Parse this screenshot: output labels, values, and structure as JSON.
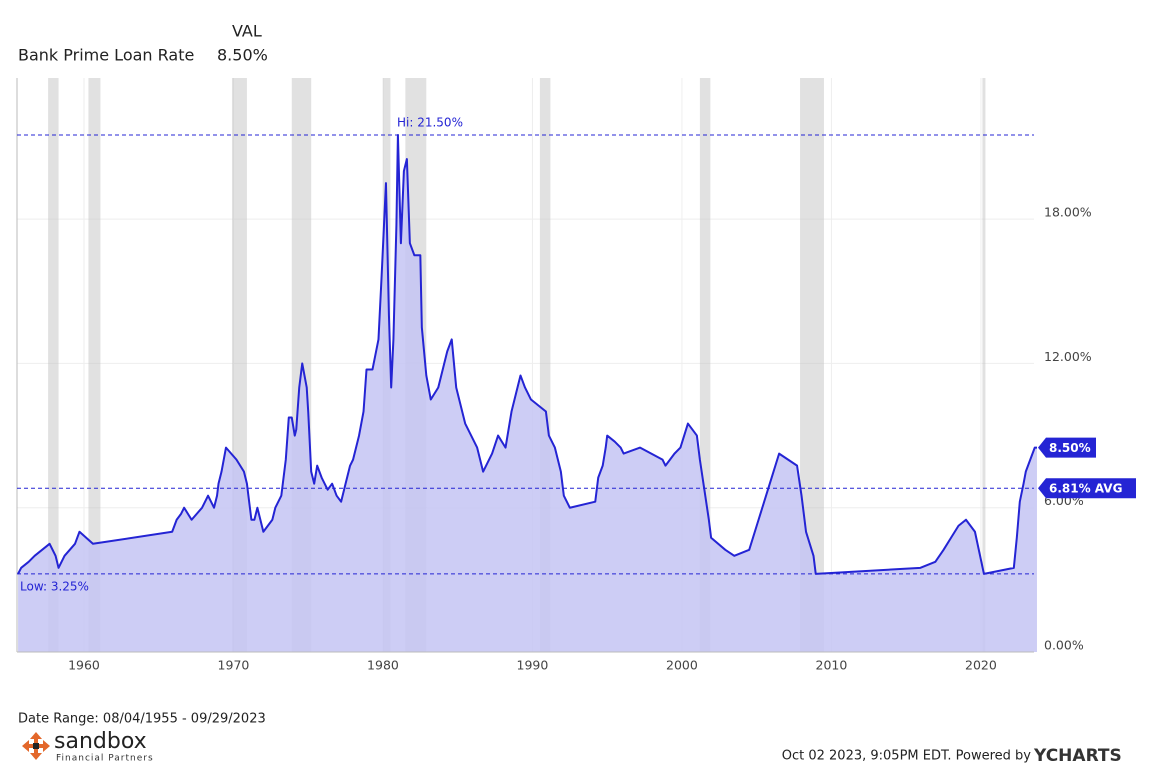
{
  "chart_data": {
    "type": "area",
    "legend_header": "VAL",
    "series": [
      {
        "name": "Bank Prime Loan Rate",
        "color": "#2424d4",
        "fill": "#c4c4f3",
        "x": [
          1955.59,
          1955.8,
          1956.3,
          1956.7,
          1957.7,
          1958.1,
          1958.3,
          1958.7,
          1959.4,
          1959.7,
          1960.6,
          1965.9,
          1966.2,
          1966.5,
          1966.7,
          1967.2,
          1967.9,
          1968.3,
          1968.7,
          1968.9,
          1969.0,
          1969.2,
          1969.5,
          1970.2,
          1970.7,
          1970.9,
          1971.0,
          1971.2,
          1971.4,
          1971.6,
          1971.8,
          1972.0,
          1972.3,
          1972.6,
          1972.8,
          1973.2,
          1973.5,
          1973.7,
          1973.9,
          1974.1,
          1974.2,
          1974.4,
          1974.6,
          1974.9,
          1975.0,
          1975.2,
          1975.4,
          1975.6,
          1975.9,
          1976.3,
          1976.6,
          1976.9,
          1977.2,
          1977.5,
          1977.8,
          1978.0,
          1978.4,
          1978.7,
          1978.9,
          1979.3,
          1979.7,
          1979.9,
          1980.2,
          1980.4,
          1980.55,
          1980.7,
          1980.9,
          1981.0,
          1981.2,
          1981.4,
          1981.6,
          1981.8,
          1982.1,
          1982.5,
          1982.6,
          1982.9,
          1983.2,
          1983.7,
          1984.3,
          1984.6,
          1984.9,
          1985.5,
          1986.3,
          1986.7,
          1987.3,
          1987.7,
          1988.2,
          1988.6,
          1989.2,
          1989.5,
          1989.9,
          1990.9,
          1991.1,
          1991.5,
          1991.9,
          1992.1,
          1992.5,
          1994.2,
          1994.4,
          1994.7,
          1994.9,
          1995.0,
          1995.5,
          1995.9,
          1996.1,
          1997.2,
          1998.7,
          1998.9,
          1999.5,
          1999.9,
          2000.4,
          2001.0,
          2001.2,
          2001.5,
          2001.8,
          2001.95,
          2002.9,
          2003.5,
          2004.5,
          2005.0,
          2005.5,
          2006.0,
          2006.5,
          2007.7,
          2008.0,
          2008.3,
          2008.8,
          2008.95,
          2015.95,
          2016.95,
          2017.5,
          2018.0,
          2018.5,
          2019.0,
          2019.6,
          2020.2,
          2022.2,
          2022.4,
          2022.6,
          2022.85,
          2023.0,
          2023.3,
          2023.6,
          2023.75
        ],
        "values": [
          3.25,
          3.5,
          3.75,
          4,
          4.5,
          4,
          3.5,
          4,
          4.5,
          5,
          4.5,
          5,
          5.5,
          5.75,
          6,
          5.5,
          6,
          6.5,
          6,
          6.5,
          7,
          7.5,
          8.5,
          8,
          7.5,
          7,
          6.5,
          5.5,
          5.5,
          6,
          5.5,
          5,
          5.25,
          5.5,
          6,
          6.5,
          8,
          9.75,
          9.75,
          9,
          9.25,
          11,
          12,
          11,
          10,
          7.5,
          7,
          7.75,
          7.25,
          6.75,
          7,
          6.5,
          6.25,
          7,
          7.75,
          8,
          9,
          10,
          11.75,
          11.75,
          13,
          15.5,
          19.5,
          14,
          11,
          13,
          17.75,
          21.5,
          17,
          20,
          20.5,
          17,
          16.5,
          16.5,
          13.5,
          11.5,
          10.5,
          11,
          12.5,
          13,
          11,
          9.5,
          8.5,
          7.5,
          8.25,
          9,
          8.5,
          10,
          11.5,
          11,
          10.5,
          10,
          9,
          8.5,
          7.5,
          6.5,
          6,
          6.25,
          7.25,
          7.75,
          8.5,
          9,
          8.75,
          8.5,
          8.25,
          8.5,
          8,
          7.75,
          8.25,
          8.5,
          9.5,
          9,
          8,
          6.75,
          5.5,
          4.75,
          4.25,
          4,
          4.25,
          5.25,
          6.25,
          7.25,
          8.25,
          7.75,
          6.5,
          5,
          4,
          3.25,
          3.5,
          3.75,
          4.25,
          4.75,
          5.25,
          5.5,
          5,
          3.25,
          3.5,
          4.75,
          6.25,
          7,
          7.5,
          8,
          8.5,
          8.5
        ]
      }
    ],
    "recessions": [
      [
        1957.6,
        1958.3
      ],
      [
        1960.3,
        1961.1
      ],
      [
        1969.9,
        1970.9
      ],
      [
        1973.9,
        1975.2
      ],
      [
        1980.0,
        1980.5
      ],
      [
        1981.5,
        1982.9
      ],
      [
        1990.5,
        1991.2
      ],
      [
        2001.2,
        2001.9
      ],
      [
        2007.9,
        2009.5
      ],
      [
        2020.1,
        2020.3
      ]
    ],
    "reference_lines": [
      {
        "value": 21.5,
        "label": "Hi: 21.50%"
      },
      {
        "value": 3.25,
        "label": "Low: 3.25%"
      },
      {
        "value": 6.81,
        "label": "6.81% AVG"
      }
    ],
    "last_value": {
      "value": 8.5,
      "label": "8.50%"
    },
    "xlim": [
      1955.52,
      2023.55
    ],
    "xticks": [
      1960,
      1970,
      1980,
      1990,
      2000,
      2010,
      2020
    ],
    "ylim": [
      0,
      23.87
    ],
    "yticks": [
      {
        "value": 0,
        "label": "0.00%"
      },
      {
        "value": 6,
        "label": "6.00%"
      },
      {
        "value": 12,
        "label": "12.00%"
      },
      {
        "value": 18,
        "label": "18.00%"
      }
    ],
    "grid": true,
    "date_range": "Date Range: 08/04/1955 - 09/29/2023",
    "footer": "Oct 02 2023, 9:05PM EDT. Powered by",
    "brand": "YCHARTS",
    "logo": {
      "name": "sandbox",
      "tagline": "Financial Partners"
    }
  }
}
